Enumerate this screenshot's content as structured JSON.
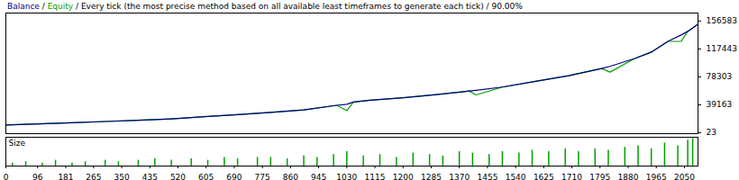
{
  "chart_data": [
    {
      "type": "line",
      "title": "Balance / Equity / Every tick (the most precise method based on all available least timeframes to generate each tick) / 90.00%",
      "x": [
        0,
        100,
        200,
        300,
        400,
        500,
        600,
        700,
        800,
        900,
        1000,
        1030,
        1050,
        1100,
        1200,
        1300,
        1400,
        1420,
        1500,
        1600,
        1700,
        1800,
        1825,
        1900,
        1950,
        2000,
        2040,
        2060,
        2091
      ],
      "series": [
        {
          "name": "Balance",
          "color": "#000080",
          "values": [
            11000,
            12500,
            14000,
            15800,
            17500,
            19500,
            22500,
            25500,
            28500,
            32000,
            38500,
            40000,
            43000,
            45500,
            49000,
            53500,
            58500,
            59500,
            64000,
            72000,
            80000,
            90000,
            93000,
            104000,
            113000,
            128000,
            137000,
            142000,
            152000
          ]
        },
        {
          "name": "Equity",
          "color": "#00a000",
          "values": [
            11000,
            12500,
            14000,
            15800,
            17500,
            19500,
            22500,
            25500,
            28500,
            32000,
            38500,
            31000,
            43000,
            45500,
            49000,
            53500,
            58500,
            53000,
            64000,
            72000,
            80000,
            90000,
            85000,
            104000,
            113000,
            128000,
            128000,
            142000,
            152000
          ]
        }
      ],
      "xlim": [
        0,
        2091
      ],
      "ylim": [
        -1200,
        167700
      ],
      "yticks": [
        23,
        39163,
        78303,
        117443,
        156583
      ],
      "grid": false,
      "tick_labels": "y"
    },
    {
      "type": "bar",
      "title": "Size",
      "x": [
        20,
        60,
        110,
        150,
        200,
        240,
        300,
        340,
        400,
        450,
        500,
        560,
        610,
        660,
        700,
        760,
        800,
        850,
        900,
        940,
        990,
        1030,
        1080,
        1130,
        1180,
        1230,
        1280,
        1320,
        1370,
        1410,
        1460,
        1500,
        1550,
        1590,
        1640,
        1690,
        1730,
        1780,
        1820,
        1870,
        1910,
        1950,
        1990,
        2030,
        2060,
        2075
      ],
      "values": [
        1,
        1.5,
        1,
        2,
        1,
        1.5,
        2,
        1.5,
        2,
        2.5,
        2,
        2.5,
        2,
        3,
        2.5,
        3,
        3,
        2.5,
        3.5,
        3,
        4,
        5,
        3.5,
        4,
        3,
        4.5,
        4,
        3.5,
        5,
        4.5,
        4,
        5,
        4.5,
        5.5,
        5,
        6,
        5,
        6,
        5.5,
        6.5,
        7,
        6,
        8,
        7,
        9,
        9.5
      ],
      "color": "#00a000",
      "xlim": [
        0,
        2091
      ],
      "xticks": [
        0,
        96,
        181,
        265,
        350,
        435,
        520,
        605,
        690,
        775,
        860,
        945,
        1030,
        1115,
        1200,
        1285,
        1370,
        1455,
        1540,
        1625,
        1710,
        1795,
        1880,
        1965,
        2050
      ],
      "ylim": [
        0,
        10
      ],
      "grid": false,
      "tick_labels": "x"
    }
  ]
}
